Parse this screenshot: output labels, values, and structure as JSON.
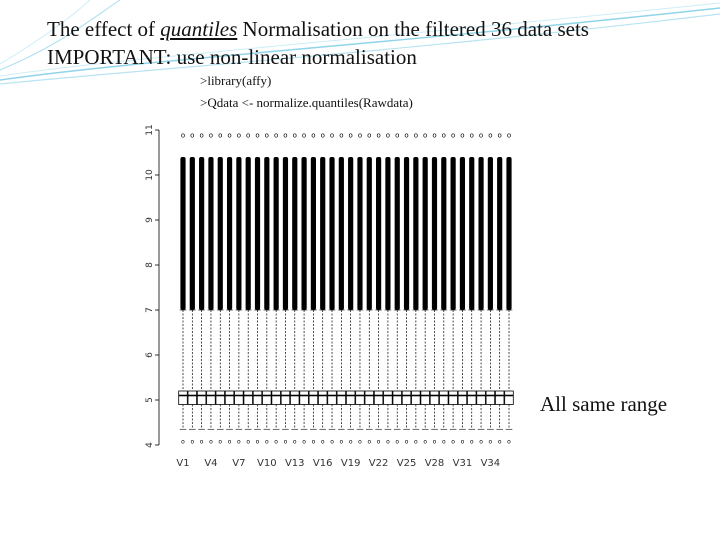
{
  "slide": {
    "title_line1_pre": "The effect of ",
    "title_line1_emph": "quantiles",
    "title_line1_post": " Normalisation on the filtered 36 data sets",
    "title_line2": "IMPORTANT: use non-linear normalisation",
    "code_line1": ">library(affy)",
    "code_line2": ">Qdata <- normalize.quantiles(Rawdata)",
    "callout": "All same range"
  },
  "colors": {
    "box_stroke": "#000000",
    "decoration": "#8fd4e8"
  },
  "chart_data": {
    "type": "boxplot",
    "title": "",
    "xlabel": "",
    "ylabel": "",
    "ylim": [
      4,
      11
    ],
    "y_ticks": [
      4,
      5,
      6,
      7,
      8,
      9,
      10,
      11
    ],
    "y_tick_labels": [
      "4",
      "5",
      "6",
      "7",
      "8",
      "9",
      "10",
      "11"
    ],
    "x_labels": [
      "V1",
      "V4",
      "V7",
      "V10",
      "V13",
      "V16",
      "V19",
      "V22",
      "V25",
      "V28",
      "V31",
      "V34"
    ],
    "n_series": 36,
    "summary": {
      "whisker_low": 4.35,
      "q1": 4.9,
      "median": 5.1,
      "q3": 5.2,
      "whisker_high": 7.0,
      "outlier_low": 4.1,
      "outlier_high": 10.9
    },
    "grid": false
  }
}
